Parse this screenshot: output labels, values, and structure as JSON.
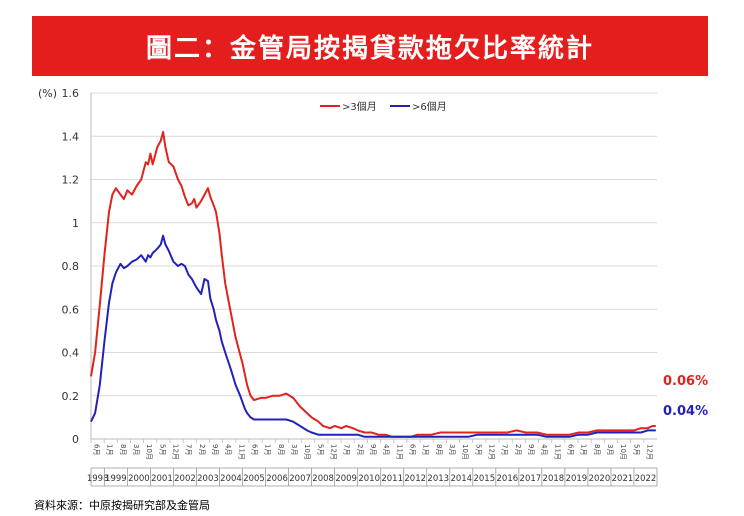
{
  "title": "圖二：金管局按揭貸款拖欠比率統計",
  "source": "資料來源：中原按揭研究部及金管局",
  "colors": {
    "banner": "#e41e1c",
    "series_gt3": "#e0231c",
    "series_gt6": "#2222bb",
    "overlap": "#7a4a33"
  },
  "chart_data": {
    "type": "line",
    "unit": "(%)",
    "ylim": [
      0,
      1.6
    ],
    "yticks": [
      "1.6",
      "1.4",
      "1.2",
      "1",
      "0.8",
      "0.6",
      "0.4",
      "0.2",
      "0"
    ],
    "grid": true,
    "legend": "top-center",
    "x_range": [
      1998.42,
      2023.0
    ],
    "year_labels": [
      "1998",
      "1999",
      "2000",
      "2001",
      "2002",
      "2003",
      "2004",
      "2005",
      "2006",
      "2007",
      "2008",
      "2009",
      "2010",
      "2011",
      "2012",
      "2013",
      "2014",
      "2015",
      "2016",
      "2017",
      "2018",
      "2019",
      "2020",
      "2021",
      "2022"
    ],
    "month_labels": [
      "6月",
      "1月",
      "8月",
      "3月",
      "10月",
      "5月",
      "12月",
      "7月",
      "2月",
      "9月",
      "4月",
      "11月",
      "6月",
      "1月",
      "8月",
      "3月",
      "10月",
      "5月",
      "12月",
      "7月",
      "2月",
      "9月",
      "4月",
      "11月",
      "6月",
      "1月",
      "8月",
      "3月",
      "10月",
      "5月",
      "12月",
      "7月",
      "2月",
      "9月",
      "4月",
      "11月",
      "6月",
      "1月",
      "8月",
      "3月",
      "10月",
      "5月",
      "12月"
    ],
    "series": [
      {
        "name": ">3個月",
        "end_label": "0.06%",
        "points": [
          [
            1998.42,
            0.29
          ],
          [
            1998.6,
            0.4
          ],
          [
            1998.8,
            0.62
          ],
          [
            1999.0,
            0.85
          ],
          [
            1999.2,
            1.05
          ],
          [
            1999.35,
            1.13
          ],
          [
            1999.5,
            1.16
          ],
          [
            1999.7,
            1.13
          ],
          [
            1999.85,
            1.11
          ],
          [
            2000.0,
            1.15
          ],
          [
            2000.2,
            1.13
          ],
          [
            2000.4,
            1.17
          ],
          [
            2000.6,
            1.2
          ],
          [
            2000.8,
            1.28
          ],
          [
            2000.9,
            1.27
          ],
          [
            2001.0,
            1.32
          ],
          [
            2001.1,
            1.27
          ],
          [
            2001.3,
            1.35
          ],
          [
            2001.45,
            1.38
          ],
          [
            2001.55,
            1.42
          ],
          [
            2001.65,
            1.35
          ],
          [
            2001.8,
            1.28
          ],
          [
            2002.0,
            1.26
          ],
          [
            2002.2,
            1.2
          ],
          [
            2002.35,
            1.17
          ],
          [
            2002.5,
            1.12
          ],
          [
            2002.65,
            1.08
          ],
          [
            2002.8,
            1.09
          ],
          [
            2002.9,
            1.11
          ],
          [
            2003.0,
            1.07
          ],
          [
            2003.2,
            1.1
          ],
          [
            2003.35,
            1.13
          ],
          [
            2003.5,
            1.16
          ],
          [
            2003.6,
            1.12
          ],
          [
            2003.75,
            1.08
          ],
          [
            2003.85,
            1.05
          ],
          [
            2004.0,
            0.95
          ],
          [
            2004.1,
            0.85
          ],
          [
            2004.25,
            0.72
          ],
          [
            2004.5,
            0.58
          ],
          [
            2004.7,
            0.47
          ],
          [
            2004.9,
            0.39
          ],
          [
            2005.0,
            0.35
          ],
          [
            2005.1,
            0.3
          ],
          [
            2005.2,
            0.25
          ],
          [
            2005.35,
            0.2
          ],
          [
            2005.5,
            0.18
          ],
          [
            2005.8,
            0.19
          ],
          [
            2006.0,
            0.19
          ],
          [
            2006.3,
            0.2
          ],
          [
            2006.6,
            0.2
          ],
          [
            2006.9,
            0.21
          ],
          [
            2007.2,
            0.19
          ],
          [
            2007.5,
            0.15
          ],
          [
            2007.8,
            0.12
          ],
          [
            2008.0,
            0.1
          ],
          [
            2008.3,
            0.08
          ],
          [
            2008.5,
            0.06
          ],
          [
            2008.8,
            0.05
          ],
          [
            2009.0,
            0.06
          ],
          [
            2009.3,
            0.05
          ],
          [
            2009.5,
            0.06
          ],
          [
            2009.8,
            0.05
          ],
          [
            2010.0,
            0.04
          ],
          [
            2010.3,
            0.03
          ],
          [
            2010.6,
            0.03
          ],
          [
            2010.9,
            0.02
          ],
          [
            2011.2,
            0.02
          ],
          [
            2011.5,
            0.01
          ],
          [
            2011.8,
            0.01
          ],
          [
            2012.0,
            0.01
          ],
          [
            2012.3,
            0.01
          ],
          [
            2012.6,
            0.02
          ],
          [
            2012.9,
            0.02
          ],
          [
            2013.2,
            0.02
          ],
          [
            2013.6,
            0.03
          ],
          [
            2014.0,
            0.03
          ],
          [
            2014.4,
            0.03
          ],
          [
            2014.8,
            0.03
          ],
          [
            2015.2,
            0.03
          ],
          [
            2015.6,
            0.03
          ],
          [
            2016.0,
            0.03
          ],
          [
            2016.5,
            0.03
          ],
          [
            2016.9,
            0.04
          ],
          [
            2017.3,
            0.03
          ],
          [
            2017.8,
            0.03
          ],
          [
            2018.2,
            0.02
          ],
          [
            2018.7,
            0.02
          ],
          [
            2019.2,
            0.02
          ],
          [
            2019.6,
            0.03
          ],
          [
            2020.0,
            0.03
          ],
          [
            2020.4,
            0.04
          ],
          [
            2020.8,
            0.04
          ],
          [
            2021.2,
            0.04
          ],
          [
            2021.6,
            0.04
          ],
          [
            2022.0,
            0.04
          ],
          [
            2022.3,
            0.05
          ],
          [
            2022.6,
            0.05
          ],
          [
            2022.8,
            0.06
          ],
          [
            2022.95,
            0.06
          ]
        ]
      },
      {
        "name": ">6個月",
        "end_label": "0.04%",
        "points": [
          [
            1998.42,
            0.08
          ],
          [
            1998.6,
            0.12
          ],
          [
            1998.8,
            0.25
          ],
          [
            1999.0,
            0.45
          ],
          [
            1999.2,
            0.63
          ],
          [
            1999.35,
            0.72
          ],
          [
            1999.5,
            0.77
          ],
          [
            1999.7,
            0.81
          ],
          [
            1999.85,
            0.79
          ],
          [
            2000.0,
            0.8
          ],
          [
            2000.2,
            0.82
          ],
          [
            2000.4,
            0.83
          ],
          [
            2000.6,
            0.85
          ],
          [
            2000.8,
            0.82
          ],
          [
            2000.9,
            0.85
          ],
          [
            2001.0,
            0.84
          ],
          [
            2001.1,
            0.86
          ],
          [
            2001.3,
            0.88
          ],
          [
            2001.45,
            0.9
          ],
          [
            2001.55,
            0.94
          ],
          [
            2001.65,
            0.9
          ],
          [
            2001.8,
            0.87
          ],
          [
            2002.0,
            0.82
          ],
          [
            2002.2,
            0.8
          ],
          [
            2002.35,
            0.81
          ],
          [
            2002.5,
            0.8
          ],
          [
            2002.65,
            0.76
          ],
          [
            2002.8,
            0.74
          ],
          [
            2002.9,
            0.72
          ],
          [
            2003.0,
            0.7
          ],
          [
            2003.2,
            0.67
          ],
          [
            2003.35,
            0.74
          ],
          [
            2003.5,
            0.73
          ],
          [
            2003.6,
            0.65
          ],
          [
            2003.75,
            0.6
          ],
          [
            2003.85,
            0.55
          ],
          [
            2004.0,
            0.5
          ],
          [
            2004.1,
            0.45
          ],
          [
            2004.25,
            0.4
          ],
          [
            2004.5,
            0.32
          ],
          [
            2004.7,
            0.25
          ],
          [
            2004.9,
            0.2
          ],
          [
            2005.0,
            0.17
          ],
          [
            2005.1,
            0.14
          ],
          [
            2005.2,
            0.12
          ],
          [
            2005.35,
            0.1
          ],
          [
            2005.5,
            0.09
          ],
          [
            2005.8,
            0.09
          ],
          [
            2006.0,
            0.09
          ],
          [
            2006.3,
            0.09
          ],
          [
            2006.6,
            0.09
          ],
          [
            2006.9,
            0.09
          ],
          [
            2007.2,
            0.08
          ],
          [
            2007.5,
            0.06
          ],
          [
            2007.8,
            0.04
          ],
          [
            2008.0,
            0.03
          ],
          [
            2008.3,
            0.02
          ],
          [
            2008.5,
            0.02
          ],
          [
            2008.8,
            0.02
          ],
          [
            2009.0,
            0.02
          ],
          [
            2009.3,
            0.02
          ],
          [
            2009.5,
            0.02
          ],
          [
            2009.8,
            0.02
          ],
          [
            2010.0,
            0.02
          ],
          [
            2010.3,
            0.01
          ],
          [
            2010.6,
            0.01
          ],
          [
            2010.9,
            0.01
          ],
          [
            2011.2,
            0.01
          ],
          [
            2011.5,
            0.01
          ],
          [
            2011.8,
            0.01
          ],
          [
            2012.0,
            0.01
          ],
          [
            2012.3,
            0.01
          ],
          [
            2012.6,
            0.01
          ],
          [
            2012.9,
            0.01
          ],
          [
            2013.2,
            0.01
          ],
          [
            2013.6,
            0.01
          ],
          [
            2014.0,
            0.01
          ],
          [
            2014.4,
            0.01
          ],
          [
            2014.8,
            0.01
          ],
          [
            2015.2,
            0.02
          ],
          [
            2015.6,
            0.02
          ],
          [
            2016.0,
            0.02
          ],
          [
            2016.5,
            0.02
          ],
          [
            2016.9,
            0.02
          ],
          [
            2017.3,
            0.02
          ],
          [
            2017.8,
            0.02
          ],
          [
            2018.2,
            0.01
          ],
          [
            2018.7,
            0.01
          ],
          [
            2019.2,
            0.01
          ],
          [
            2019.6,
            0.02
          ],
          [
            2020.0,
            0.02
          ],
          [
            2020.4,
            0.03
          ],
          [
            2020.8,
            0.03
          ],
          [
            2021.2,
            0.03
          ],
          [
            2021.6,
            0.03
          ],
          [
            2022.0,
            0.03
          ],
          [
            2022.3,
            0.03
          ],
          [
            2022.6,
            0.04
          ],
          [
            2022.8,
            0.04
          ],
          [
            2022.95,
            0.04
          ]
        ]
      }
    ]
  }
}
